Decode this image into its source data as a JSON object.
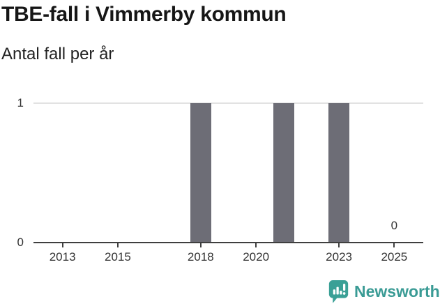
{
  "header": {
    "title": "TBE-fall i Vimmerby kommun",
    "subtitle": "Antal fall per år"
  },
  "chart_data": {
    "type": "bar",
    "title": "TBE-fall i Vimmerby kommun",
    "ylabel": "Antal fall per år",
    "x_domain": [
      2011.95,
      2026.05
    ],
    "y_domain": [
      0,
      1
    ],
    "points": [
      {
        "x": 2018,
        "y": 1
      },
      {
        "x": 2021,
        "y": 1
      },
      {
        "x": 2023,
        "y": 1
      },
      {
        "x": 2025,
        "y": 0,
        "label": "0"
      }
    ],
    "x_ticks": [
      {
        "value": 2013,
        "label": "2013"
      },
      {
        "value": 2015,
        "label": "2015"
      },
      {
        "value": 2018,
        "label": "2018"
      },
      {
        "value": 2020,
        "label": "2020"
      },
      {
        "value": 2023,
        "label": "2023"
      },
      {
        "value": 2025,
        "label": "2025"
      }
    ],
    "y_ticks": [
      {
        "value": 0,
        "label": "0"
      },
      {
        "value": 1,
        "label": "1"
      }
    ],
    "y_gridlines": [
      1
    ],
    "grid": true,
    "legend": "none",
    "colors": {
      "bar": "#6d6d76",
      "axis": "#3f3f3f",
      "grid": "#e2e2e2",
      "tick_text": "#333333"
    }
  },
  "footer": {
    "brand": "Newsworthy",
    "icon": "newsworthy-chart-bubble-icon",
    "brand_color": "#3a9b95",
    "icon_color": "#3aa096"
  }
}
